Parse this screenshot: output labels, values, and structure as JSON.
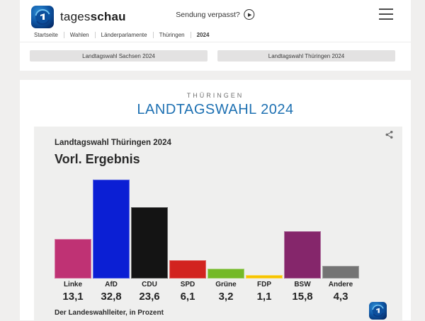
{
  "header": {
    "brand_regular": "tages",
    "brand_bold": "schau",
    "sendung_verpasst": "Sendung verpasst?",
    "play_icon": "play-icon",
    "menu_icon": "hamburger-icon",
    "logo_icon": "tagesschau-globe-icon"
  },
  "breadcrumb": {
    "items": [
      "Startseite",
      "Wahlen",
      "Länderparlamente",
      "Thüringen",
      "2024"
    ],
    "active": "2024"
  },
  "nav_buttons": {
    "sachsen": "Landtagswahl Sachsen 2024",
    "thueringen": "Landtagswahl Thüringen 2024"
  },
  "page": {
    "kicker": "THÜRINGEN",
    "title": "LANDTAGSWAHL 2024",
    "title_color": "#1d70b2"
  },
  "chart_data": {
    "type": "bar",
    "title": "Landtagswahl Thüringen 2024",
    "subtitle": "Vorl. Ergebnis",
    "categories": [
      "Linke",
      "AfD",
      "CDU",
      "SPD",
      "Grüne",
      "FDP",
      "BSW",
      "Andere"
    ],
    "values": [
      13.1,
      32.8,
      23.6,
      6.1,
      3.2,
      1.1,
      15.8,
      4.3
    ],
    "value_labels": [
      "13,1",
      "32,8",
      "23,6",
      "6,1",
      "3,2",
      "1,1",
      "15,8",
      "4,3"
    ],
    "colors": [
      "#bf3274",
      "#0b1fd4",
      "#141414",
      "#d2231f",
      "#74b928",
      "#f6c400",
      "#85266b",
      "#747474"
    ],
    "source": "Der Landeswahlleiter, in Prozent",
    "unit": "percent",
    "ylim": [
      0,
      35
    ],
    "grid": false,
    "legend": false,
    "share_icon": "share-icon"
  }
}
